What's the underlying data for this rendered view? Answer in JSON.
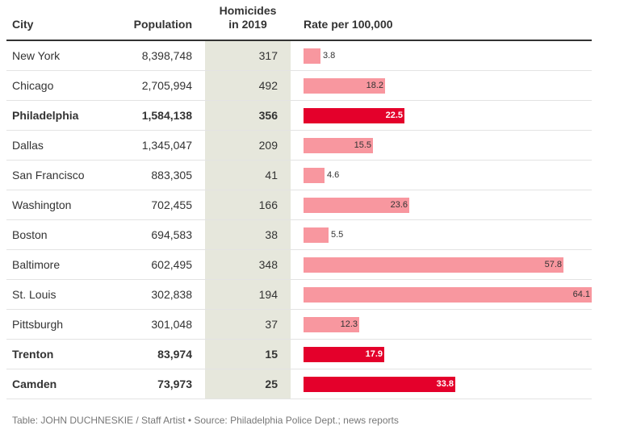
{
  "table": {
    "headers": {
      "city": "City",
      "population": "Population",
      "homicides_line1": "Homicides",
      "homicides_line2": "in 2019",
      "rate": "Rate per 100,000"
    },
    "footer": "Table: JOHN DUCHNESKIE / Staff Artist • Source: Philadelphia Police Dept.; news reports"
  },
  "colors": {
    "bar_default": "#f8979f",
    "bar_highlight": "#e4002b",
    "highlight_column": "#e6e7dc"
  },
  "chart_data": {
    "type": "table",
    "columns": [
      "City",
      "Population",
      "Homicides in 2019",
      "Rate per 100,000"
    ],
    "bar_column": "Rate per 100,000",
    "bar_scale_max": 64.1,
    "rows": [
      {
        "city": "New York",
        "population": "8,398,748",
        "homicides": "317",
        "rate": 3.8,
        "highlight": false
      },
      {
        "city": "Chicago",
        "population": "2,705,994",
        "homicides": "492",
        "rate": 18.2,
        "highlight": false
      },
      {
        "city": "Philadelphia",
        "population": "1,584,138",
        "homicides": "356",
        "rate": 22.5,
        "highlight": true
      },
      {
        "city": "Dallas",
        "population": "1,345,047",
        "homicides": "209",
        "rate": 15.5,
        "highlight": false
      },
      {
        "city": "San Francisco",
        "population": "883,305",
        "homicides": "41",
        "rate": 4.6,
        "highlight": false
      },
      {
        "city": "Washington",
        "population": "702,455",
        "homicides": "166",
        "rate": 23.6,
        "highlight": false
      },
      {
        "city": "Boston",
        "population": "694,583",
        "homicides": "38",
        "rate": 5.5,
        "highlight": false
      },
      {
        "city": "Baltimore",
        "population": "602,495",
        "homicides": "348",
        "rate": 57.8,
        "highlight": false
      },
      {
        "city": "St. Louis",
        "population": "302,838",
        "homicides": "194",
        "rate": 64.1,
        "highlight": false
      },
      {
        "city": "Pittsburgh",
        "population": "301,048",
        "homicides": "37",
        "rate": 12.3,
        "highlight": false
      },
      {
        "city": "Trenton",
        "population": "83,974",
        "homicides": "15",
        "rate": 17.9,
        "highlight": true
      },
      {
        "city": "Camden",
        "population": "73,973",
        "homicides": "25",
        "rate": 33.8,
        "highlight": true
      }
    ]
  }
}
